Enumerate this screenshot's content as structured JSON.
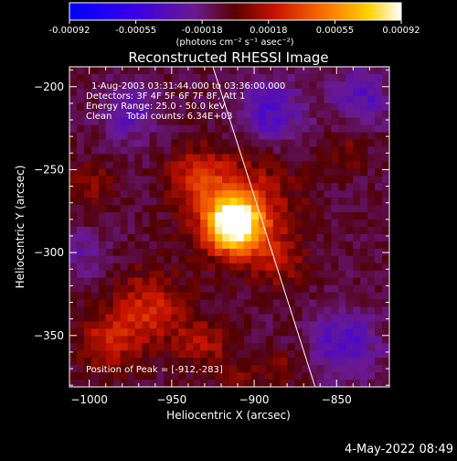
{
  "colorbar": {
    "ticks": [
      "-0.00092",
      "-0.00055",
      "-0.00018",
      "0.00018",
      "0.00055",
      "0.00092"
    ],
    "unit_label": "(photons cm⁻² s⁻¹ asec⁻²)"
  },
  "chart_data": {
    "type": "heatmap",
    "title": "Reconstructed RHESSI Image",
    "xlabel": "Heliocentric X (arcsec)",
    "ylabel": "Heliocentric Y (arcsec)",
    "xlim": [
      -1012,
      -818
    ],
    "ylim": [
      -381,
      -188
    ],
    "x_ticks": [
      -1000,
      -950,
      -900,
      -850
    ],
    "y_ticks": [
      -200,
      -250,
      -300,
      -350
    ],
    "x_tick_labels": [
      "−1000",
      "−950",
      "−900",
      "−850"
    ],
    "y_tick_labels": [
      "−200",
      "−250",
      "−300",
      "−350"
    ],
    "value_range": [
      -0.00092,
      0.00092
    ],
    "colormap": "rhessi-blue-purple-red-yellow-white",
    "peak": {
      "x": -912,
      "y": -283
    },
    "limb_line": [
      [
        -925,
        -188
      ],
      [
        -863,
        -381
      ]
    ],
    "annotations": [
      "1-Aug-2003 03:31:44.000 to 03:36:00.000",
      "Detectors: 3F 4F 5F 6F 7F 8F, Att 1",
      "Energy Range: 25.0 - 50.0 keV",
      "Clean     Total counts: 6.34E+03"
    ],
    "peak_label": "Position of Peak = [-912,-283]"
  },
  "footer": {
    "date": "4-May-2022 08:49"
  }
}
